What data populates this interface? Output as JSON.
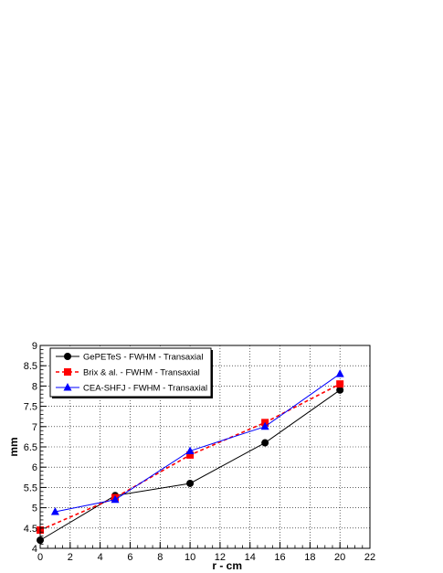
{
  "chart_data": {
    "type": "line",
    "xlabel": "r - cm",
    "ylabel": "mm",
    "xlim": [
      0,
      22
    ],
    "ylim": [
      4,
      9
    ],
    "xticks": [
      0,
      2,
      4,
      6,
      8,
      10,
      12,
      14,
      16,
      18,
      20,
      22
    ],
    "yticks": [
      4,
      4.5,
      5,
      5.5,
      6,
      6.5,
      7,
      7.5,
      8,
      8.5,
      9
    ],
    "grid": true,
    "legend_position": "top-left",
    "series": [
      {
        "name": "GePETeS - FWHM - Transaxial",
        "color": "#000000",
        "line_style": "solid",
        "marker": "circle",
        "x": [
          0,
          5,
          10,
          15,
          20
        ],
        "y": [
          4.2,
          5.3,
          5.6,
          6.6,
          7.9
        ]
      },
      {
        "name": "Brix & al. - FWHM - Transaxial",
        "color": "#ff0000",
        "line_style": "dashed",
        "marker": "square",
        "x": [
          0,
          5,
          10,
          15,
          20
        ],
        "y": [
          4.45,
          5.25,
          6.3,
          7.1,
          8.05
        ]
      },
      {
        "name": "CEA-SHFJ - FWHM - Transaxial",
        "color": "#0000ff",
        "line_style": "solid",
        "marker": "triangle",
        "x": [
          1,
          5,
          10,
          15,
          20
        ],
        "y": [
          4.9,
          5.2,
          6.4,
          7.0,
          8.3
        ]
      }
    ]
  }
}
